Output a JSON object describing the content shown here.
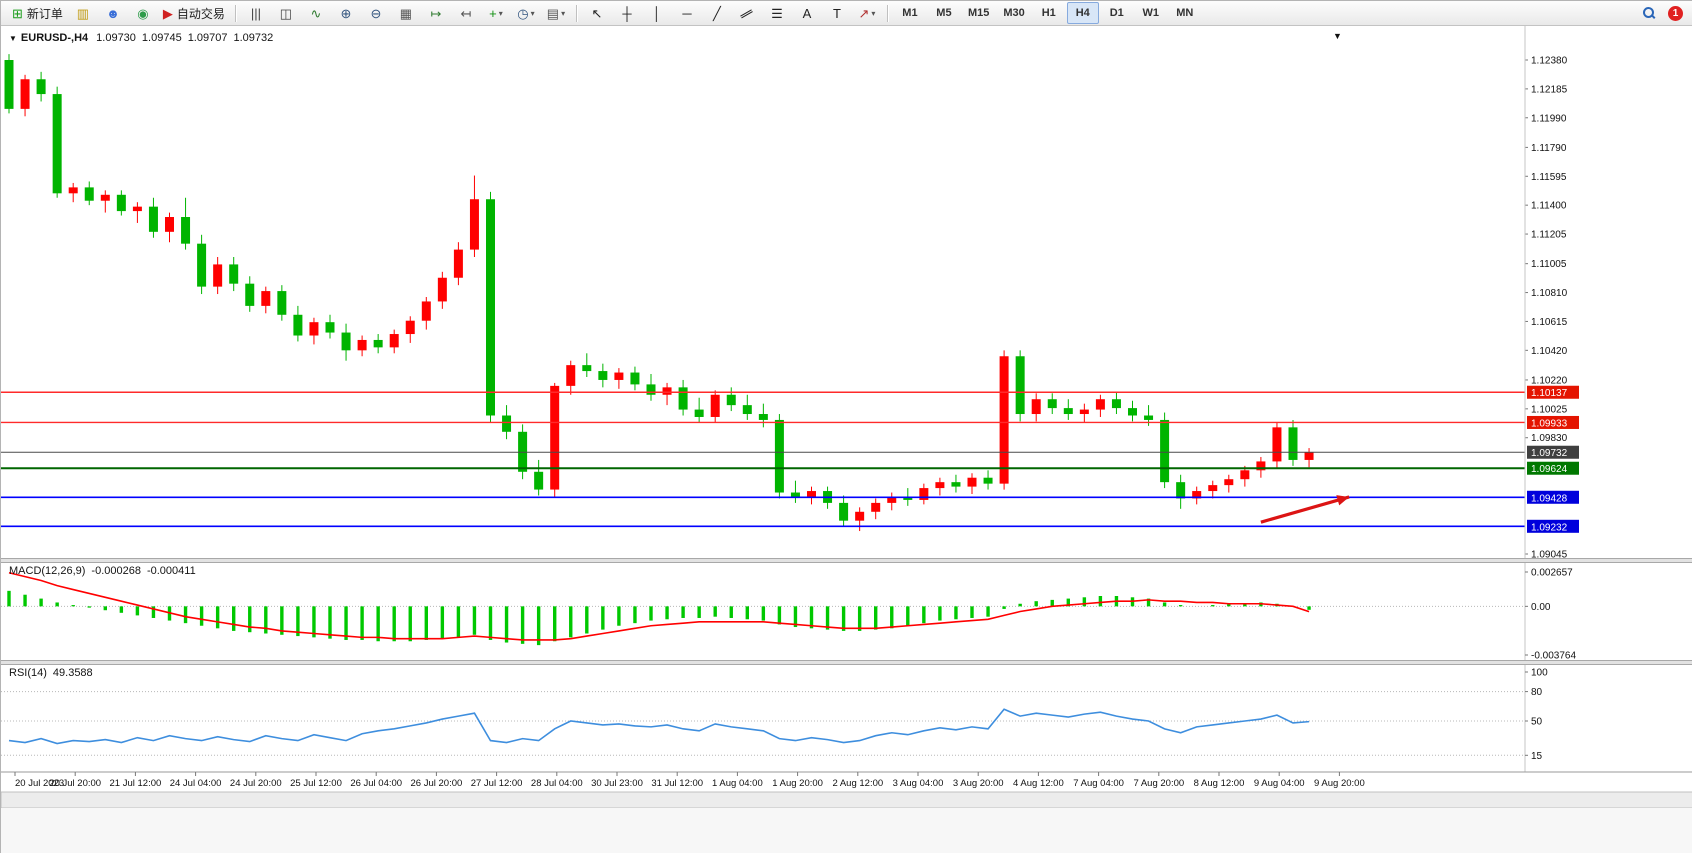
{
  "icons": {
    "expand_triangle": "▼",
    "scroll_to_end": "▼",
    "dropdown_arrow": "▾"
  },
  "colors": {
    "bull": "#FF0000",
    "bear": "#00B400",
    "macd_hist": "#00C800",
    "macd_signal": "#FF0000",
    "rsi_line": "#3E8EDE",
    "axis_text": "#111111",
    "grid_dotted": "#b8b8b8",
    "arrow": "#DC1414"
  },
  "toolbar": {
    "notification_count": "1",
    "groups": [
      {
        "name": "orders",
        "items": [
          {
            "name": "new-order-button",
            "glyph": "⊞",
            "glyph_color": "#1a9c1a",
            "label": "新订单"
          },
          {
            "name": "new-chart-button",
            "glyph": "▥",
            "glyph_color": "#c09a10"
          },
          {
            "name": "profiles-button",
            "glyph": "☻",
            "glyph_color": "#3a6fd8"
          },
          {
            "name": "market-watch-button",
            "glyph": "◉",
            "glyph_color": "#2e9c4a"
          },
          {
            "name": "auto-trading-button",
            "glyph": "▶",
            "glyph_color": "#d02020",
            "label": "自动交易"
          }
        ]
      },
      {
        "name": "chart-tools",
        "items": [
          {
            "name": "bar-chart-type-button",
            "glyph": "|||",
            "glyph_color": "#444444"
          },
          {
            "name": "candlestick-type-button",
            "glyph": "◫",
            "glyph_color": "#444444"
          },
          {
            "name": "line-chart-type-button",
            "glyph": "∿",
            "glyph_color": "#2f7a2f"
          },
          {
            "name": "zoom-in-button",
            "glyph": "⊕",
            "glyph_color": "#33557f"
          },
          {
            "name": "zoom-out-button",
            "glyph": "⊖",
            "glyph_color": "#33557f"
          },
          {
            "name": "tile-windows-button",
            "glyph": "▦",
            "glyph_color": "#555555"
          },
          {
            "name": "auto-scroll-button",
            "glyph": "↦",
            "glyph_color": "#2f7a2f"
          },
          {
            "name": "chart-shift-button",
            "glyph": "↤",
            "glyph_color": "#555555"
          },
          {
            "name": "indicators-button",
            "glyph": "+",
            "glyph_color": "#109010",
            "has_dropdown": true
          },
          {
            "name": "periods-button",
            "glyph": "◷",
            "glyph_color": "#33557f",
            "has_dropdown": true
          },
          {
            "name": "templates-button",
            "glyph": "▤",
            "glyph_color": "#555555",
            "has_dropdown": true
          }
        ]
      },
      {
        "name": "line-studies",
        "items": [
          {
            "name": "cursor-button",
            "glyph": "↖",
            "glyph_color": "#222222"
          },
          {
            "name": "crosshair-button",
            "glyph": "┼",
            "glyph_color": "#222222"
          },
          {
            "name": "vertical-line-button",
            "glyph": "│",
            "glyph_color": "#222222"
          },
          {
            "name": "horizontal-line-button",
            "glyph": "─",
            "glyph_color": "#222222"
          },
          {
            "name": "trendline-button",
            "glyph": "╱",
            "glyph_color": "#222222"
          },
          {
            "name": "channel-button",
            "glyph": "∥",
            "glyph_color": "#222222",
            "rotate": true
          },
          {
            "name": "fibonacci-button",
            "glyph": "☰",
            "glyph_color": "#222222"
          },
          {
            "name": "text-button",
            "glyph": "A",
            "glyph_color": "#222222"
          },
          {
            "name": "text-label-button",
            "glyph": "T",
            "glyph_color": "#222222"
          },
          {
            "name": "arrows-button",
            "glyph": "↗",
            "glyph_color": "#b03030",
            "has_dropdown": true
          }
        ]
      },
      {
        "name": "timeframes",
        "items": [
          {
            "name": "timeframe-m1",
            "label": "M1"
          },
          {
            "name": "timeframe-m5",
            "label": "M5"
          },
          {
            "name": "timeframe-m15",
            "label": "M15"
          },
          {
            "name": "timeframe-m30",
            "label": "M30"
          },
          {
            "name": "timeframe-h1",
            "label": "H1"
          },
          {
            "name": "timeframe-h4",
            "label": "H4",
            "active": true
          },
          {
            "name": "timeframe-d1",
            "label": "D1"
          },
          {
            "name": "timeframe-w1",
            "label": "W1"
          },
          {
            "name": "timeframe-mn",
            "label": "MN"
          }
        ]
      }
    ]
  },
  "chart": {
    "header": {
      "symbol_period": "EURUSD-,H4",
      "open": "1.09730",
      "high": "1.09745",
      "low": "1.09707",
      "close": "1.09732"
    }
  },
  "indicators": {
    "macd": {
      "name": "MACD(12,26,9)",
      "main_value": "-0.000268",
      "signal_value": "-0.000411"
    },
    "rsi": {
      "name": "RSI(14)",
      "value": "49.3588"
    }
  },
  "chart_data": {
    "type": "candlestick",
    "symbol": "EURUSD-",
    "timeframe": "H4",
    "main": {
      "type": "candlestick",
      "color_convention": "red-up-green-down",
      "y_axis_labels": [
        "1.12380",
        "1.12185",
        "1.11990",
        "1.11790",
        "1.11595",
        "1.11400",
        "1.11205",
        "1.11005",
        "1.10810",
        "1.10615",
        "1.10420",
        "1.10220",
        "1.10025",
        "1.09830",
        "1.09045"
      ],
      "ylim": [
        1.09045,
        1.1238
      ],
      "candles": [
        [
          1.1238,
          1.1242,
          1.1202,
          1.1205
        ],
        [
          1.1205,
          1.1228,
          1.12,
          1.1225
        ],
        [
          1.1225,
          1.123,
          1.121,
          1.1215
        ],
        [
          1.1215,
          1.122,
          1.1145,
          1.1148
        ],
        [
          1.1148,
          1.1155,
          1.1142,
          1.1152
        ],
        [
          1.1152,
          1.1156,
          1.114,
          1.1143
        ],
        [
          1.1143,
          1.115,
          1.1135,
          1.1147
        ],
        [
          1.1147,
          1.115,
          1.1133,
          1.1136
        ],
        [
          1.1136,
          1.1142,
          1.1128,
          1.1139
        ],
        [
          1.1139,
          1.1145,
          1.1118,
          1.1122
        ],
        [
          1.1122,
          1.1135,
          1.1115,
          1.1132
        ],
        [
          1.1132,
          1.1145,
          1.111,
          1.1114
        ],
        [
          1.1114,
          1.112,
          1.108,
          1.1085
        ],
        [
          1.1085,
          1.1105,
          1.108,
          1.11
        ],
        [
          1.11,
          1.1105,
          1.1082,
          1.1087
        ],
        [
          1.1087,
          1.1092,
          1.1068,
          1.1072
        ],
        [
          1.1072,
          1.1085,
          1.1067,
          1.1082
        ],
        [
          1.1082,
          1.1086,
          1.1062,
          1.1066
        ],
        [
          1.1066,
          1.1072,
          1.1048,
          1.1052
        ],
        [
          1.1052,
          1.1064,
          1.1046,
          1.1061
        ],
        [
          1.1061,
          1.1066,
          1.105,
          1.1054
        ],
        [
          1.1054,
          1.106,
          1.1035,
          1.1042
        ],
        [
          1.1042,
          1.1052,
          1.1038,
          1.1049
        ],
        [
          1.1049,
          1.1053,
          1.104,
          1.1044
        ],
        [
          1.1044,
          1.1056,
          1.104,
          1.1053
        ],
        [
          1.1053,
          1.1065,
          1.1047,
          1.1062
        ],
        [
          1.1062,
          1.1078,
          1.1056,
          1.1075
        ],
        [
          1.1075,
          1.1095,
          1.107,
          1.1091
        ],
        [
          1.1091,
          1.1115,
          1.1086,
          1.111
        ],
        [
          1.111,
          1.116,
          1.1105,
          1.1144
        ],
        [
          1.1144,
          1.1149,
          1.0993,
          1.0998
        ],
        [
          1.0998,
          1.1005,
          1.0982,
          1.0987
        ],
        [
          1.0987,
          1.0992,
          1.0955,
          1.096
        ],
        [
          1.096,
          1.0968,
          1.0944,
          1.0948
        ],
        [
          1.0948,
          1.102,
          1.0943,
          1.1018
        ],
        [
          1.1018,
          1.1035,
          1.1012,
          1.1032
        ],
        [
          1.1032,
          1.104,
          1.1024,
          1.1028
        ],
        [
          1.1028,
          1.1033,
          1.1017,
          1.1022
        ],
        [
          1.1022,
          1.103,
          1.1016,
          1.1027
        ],
        [
          1.1027,
          1.1031,
          1.1015,
          1.1019
        ],
        [
          1.1019,
          1.1026,
          1.1008,
          1.1012
        ],
        [
          1.1012,
          1.102,
          1.1005,
          1.1017
        ],
        [
          1.1017,
          1.1022,
          1.0998,
          1.1002
        ],
        [
          1.1002,
          1.101,
          1.0993,
          1.0997
        ],
        [
          1.0997,
          1.1015,
          1.0993,
          1.1012
        ],
        [
          1.1012,
          1.1017,
          1.1001,
          1.1005
        ],
        [
          1.1005,
          1.1012,
          1.0995,
          1.0999
        ],
        [
          1.0999,
          1.1006,
          1.099,
          1.0995
        ],
        [
          1.0995,
          1.0999,
          1.0942,
          1.0946
        ],
        [
          1.0946,
          1.0954,
          1.0939,
          1.0943
        ],
        [
          1.0943,
          1.095,
          1.0938,
          1.0947
        ],
        [
          1.0947,
          1.095,
          1.0935,
          1.0939
        ],
        [
          1.0939,
          1.0944,
          1.0923,
          1.0927
        ],
        [
          1.0927,
          1.0936,
          1.092,
          1.0933
        ],
        [
          1.0933,
          1.0942,
          1.0928,
          1.0939
        ],
        [
          1.0939,
          1.0946,
          1.0934,
          1.0943
        ],
        [
          1.0943,
          1.0949,
          1.0937,
          1.0941
        ],
        [
          1.0941,
          1.0952,
          1.0938,
          1.0949
        ],
        [
          1.0949,
          1.0956,
          1.0944,
          1.0953
        ],
        [
          1.0953,
          1.0958,
          1.0946,
          1.095
        ],
        [
          1.095,
          1.0959,
          1.0945,
          1.0956
        ],
        [
          1.0956,
          1.0961,
          1.0948,
          1.0952
        ],
        [
          1.0952,
          1.1042,
          1.0948,
          1.1038
        ],
        [
          1.1038,
          1.1042,
          1.0994,
          1.0999
        ],
        [
          1.0999,
          1.1013,
          1.0994,
          1.1009
        ],
        [
          1.1009,
          1.1013,
          1.0999,
          1.1003
        ],
        [
          1.1003,
          1.1009,
          1.0995,
          1.0999
        ],
        [
          1.0999,
          1.1006,
          1.0993,
          1.1002
        ],
        [
          1.1002,
          1.1012,
          1.0997,
          1.1009
        ],
        [
          1.1009,
          1.1014,
          1.0999,
          1.1003
        ],
        [
          1.1003,
          1.1008,
          1.0994,
          1.0998
        ],
        [
          1.0998,
          1.1005,
          1.0991,
          1.0995
        ],
        [
          1.0995,
          1.1,
          1.0949,
          1.0953
        ],
        [
          1.0953,
          1.0958,
          1.0935,
          1.0942
        ],
        [
          1.0942,
          1.095,
          1.0938,
          1.0947
        ],
        [
          1.0947,
          1.0954,
          1.0942,
          1.0951
        ],
        [
          1.0951,
          1.0958,
          1.0946,
          1.0955
        ],
        [
          1.0955,
          1.0964,
          1.095,
          1.0961
        ],
        [
          1.0961,
          1.097,
          1.0956,
          1.0967
        ],
        [
          1.0967,
          1.0993,
          1.0962,
          1.099
        ],
        [
          1.099,
          1.0995,
          1.0964,
          1.0968
        ],
        [
          1.0968,
          1.0976,
          1.0963,
          1.09732
        ]
      ],
      "hlines": [
        {
          "price": 1.10137,
          "color": "#FF2A2A",
          "width": 1.4,
          "label": "1.10137",
          "label_bg": "#E41400"
        },
        {
          "price": 1.09933,
          "color": "#FF2A2A",
          "width": 1.4,
          "label": "1.09933",
          "label_bg": "#E41400"
        },
        {
          "price": 1.09732,
          "color": "#4A4A4A",
          "width": 1,
          "style": "solid",
          "role": "current-price",
          "label": "1.09732",
          "label_bg": "#3F3F3F"
        },
        {
          "price": 1.09624,
          "color": "#006600",
          "width": 2,
          "label": "1.09624",
          "label_bg": "#007800"
        },
        {
          "price": 1.09428,
          "color": "#0000FF",
          "width": 1.6,
          "label": "1.09428",
          "label_bg": "#0000DC"
        },
        {
          "price": 1.09232,
          "color": "#0000FF",
          "width": 1.6,
          "label": "1.09232",
          "label_bg": "#0000DC"
        }
      ],
      "arrow": {
        "type": "arrow",
        "color": "#DC1414",
        "from_index": 78,
        "from_price": 1.0926,
        "to_index": 83.5,
        "to_price": 1.0943
      }
    },
    "macd": {
      "type": "bar+line",
      "label": "MACD(12,26,9)",
      "main_value": -0.000268,
      "signal_value": -0.000411,
      "y_axis_labels": [
        "0.002657",
        "0.00",
        "-0.003764"
      ],
      "histogram": [
        0.0012,
        0.0009,
        0.0006,
        0.0003,
        0.0001,
        -0.0001,
        -0.0003,
        -0.0005,
        -0.0007,
        -0.0009,
        -0.0011,
        -0.0013,
        -0.0015,
        -0.0017,
        -0.0019,
        -0.002,
        -0.0021,
        -0.0022,
        -0.0023,
        -0.0024,
        -0.0025,
        -0.0026,
        -0.0026,
        -0.0027,
        -0.0027,
        -0.0027,
        -0.0026,
        -0.0025,
        -0.0024,
        -0.0022,
        -0.0026,
        -0.0028,
        -0.0029,
        -0.003,
        -0.0027,
        -0.0024,
        -0.0021,
        -0.0018,
        -0.0015,
        -0.0013,
        -0.0011,
        -0.001,
        -0.0009,
        -0.0009,
        -0.0008,
        -0.0009,
        -0.001,
        -0.0011,
        -0.0014,
        -0.0016,
        -0.0017,
        -0.0018,
        -0.0019,
        -0.0019,
        -0.0018,
        -0.0017,
        -0.0015,
        -0.0013,
        -0.0011,
        -0.001,
        -0.0009,
        -0.0008,
        -0.0002,
        0.0002,
        0.0004,
        0.0005,
        0.0006,
        0.0007,
        0.0008,
        0.0008,
        0.0007,
        0.0006,
        0.0003,
        0.0001,
        0.0,
        0.0001,
        0.0002,
        0.0002,
        0.0003,
        0.0002,
        0.0,
        -0.000268
      ],
      "signal": [
        0.0026,
        0.0023,
        0.002,
        0.0016,
        0.0013,
        0.001,
        0.0007,
        0.0004,
        0.0001,
        -0.0002,
        -0.0005,
        -0.0008,
        -0.001,
        -0.0012,
        -0.0014,
        -0.0016,
        -0.0017,
        -0.0019,
        -0.002,
        -0.0021,
        -0.0022,
        -0.0023,
        -0.0024,
        -0.0024,
        -0.0025,
        -0.0025,
        -0.0025,
        -0.0025,
        -0.0024,
        -0.0023,
        -0.0024,
        -0.0025,
        -0.0026,
        -0.0026,
        -0.0026,
        -0.0025,
        -0.0023,
        -0.0021,
        -0.0019,
        -0.0017,
        -0.0015,
        -0.0014,
        -0.0013,
        -0.0012,
        -0.0012,
        -0.0012,
        -0.0012,
        -0.0012,
        -0.0013,
        -0.0014,
        -0.0015,
        -0.0016,
        -0.0017,
        -0.0017,
        -0.0017,
        -0.0016,
        -0.0015,
        -0.0014,
        -0.0013,
        -0.0012,
        -0.0011,
        -0.001,
        -0.0007,
        -0.0004,
        -0.0002,
        0.0,
        0.0001,
        0.0002,
        0.0003,
        0.0004,
        0.0004,
        0.0005,
        0.0004,
        0.0004,
        0.0003,
        0.0003,
        0.0002,
        0.0002,
        0.0002,
        0.0001,
        0.0,
        -0.000411
      ]
    },
    "rsi": {
      "type": "line",
      "label": "RSI(14)",
      "current_value": 49.3588,
      "levels": [
        80,
        50,
        15
      ],
      "y_axis_labels": [
        "100",
        "80",
        "50",
        "15"
      ],
      "ylim": [
        0,
        100
      ],
      "values": [
        30,
        28,
        32,
        27,
        30,
        29,
        31,
        28,
        33,
        30,
        35,
        32,
        30,
        34,
        31,
        29,
        35,
        32,
        30,
        36,
        33,
        30,
        37,
        40,
        42,
        45,
        48,
        52,
        55,
        58,
        30,
        28,
        32,
        30,
        42,
        50,
        48,
        46,
        47,
        45,
        44,
        46,
        42,
        40,
        47,
        44,
        42,
        40,
        32,
        30,
        33,
        31,
        28,
        30,
        35,
        38,
        36,
        40,
        43,
        41,
        44,
        42,
        62,
        55,
        58,
        56,
        54,
        57,
        59,
        55,
        52,
        50,
        42,
        38,
        44,
        46,
        48,
        50,
        52,
        56,
        48,
        49.36
      ]
    },
    "time_axis_labels": [
      "20 Jul 2023",
      "20 Jul 20:00",
      "21 Jul 12:00",
      "24 Jul 04:00",
      "24 Jul 20:00",
      "25 Jul 12:00",
      "26 Jul 04:00",
      "26 Jul 20:00",
      "27 Jul 12:00",
      "28 Jul 04:00",
      "30 Jul 23:00",
      "31 Jul 12:00",
      "1 Aug 04:00",
      "1 Aug 20:00",
      "2 Aug 12:00",
      "3 Aug 04:00",
      "3 Aug 20:00",
      "4 Aug 12:00",
      "7 Aug 04:00",
      "7 Aug 20:00",
      "8 Aug 12:00",
      "9 Aug 04:00",
      "9 Aug 20:00"
    ]
  }
}
